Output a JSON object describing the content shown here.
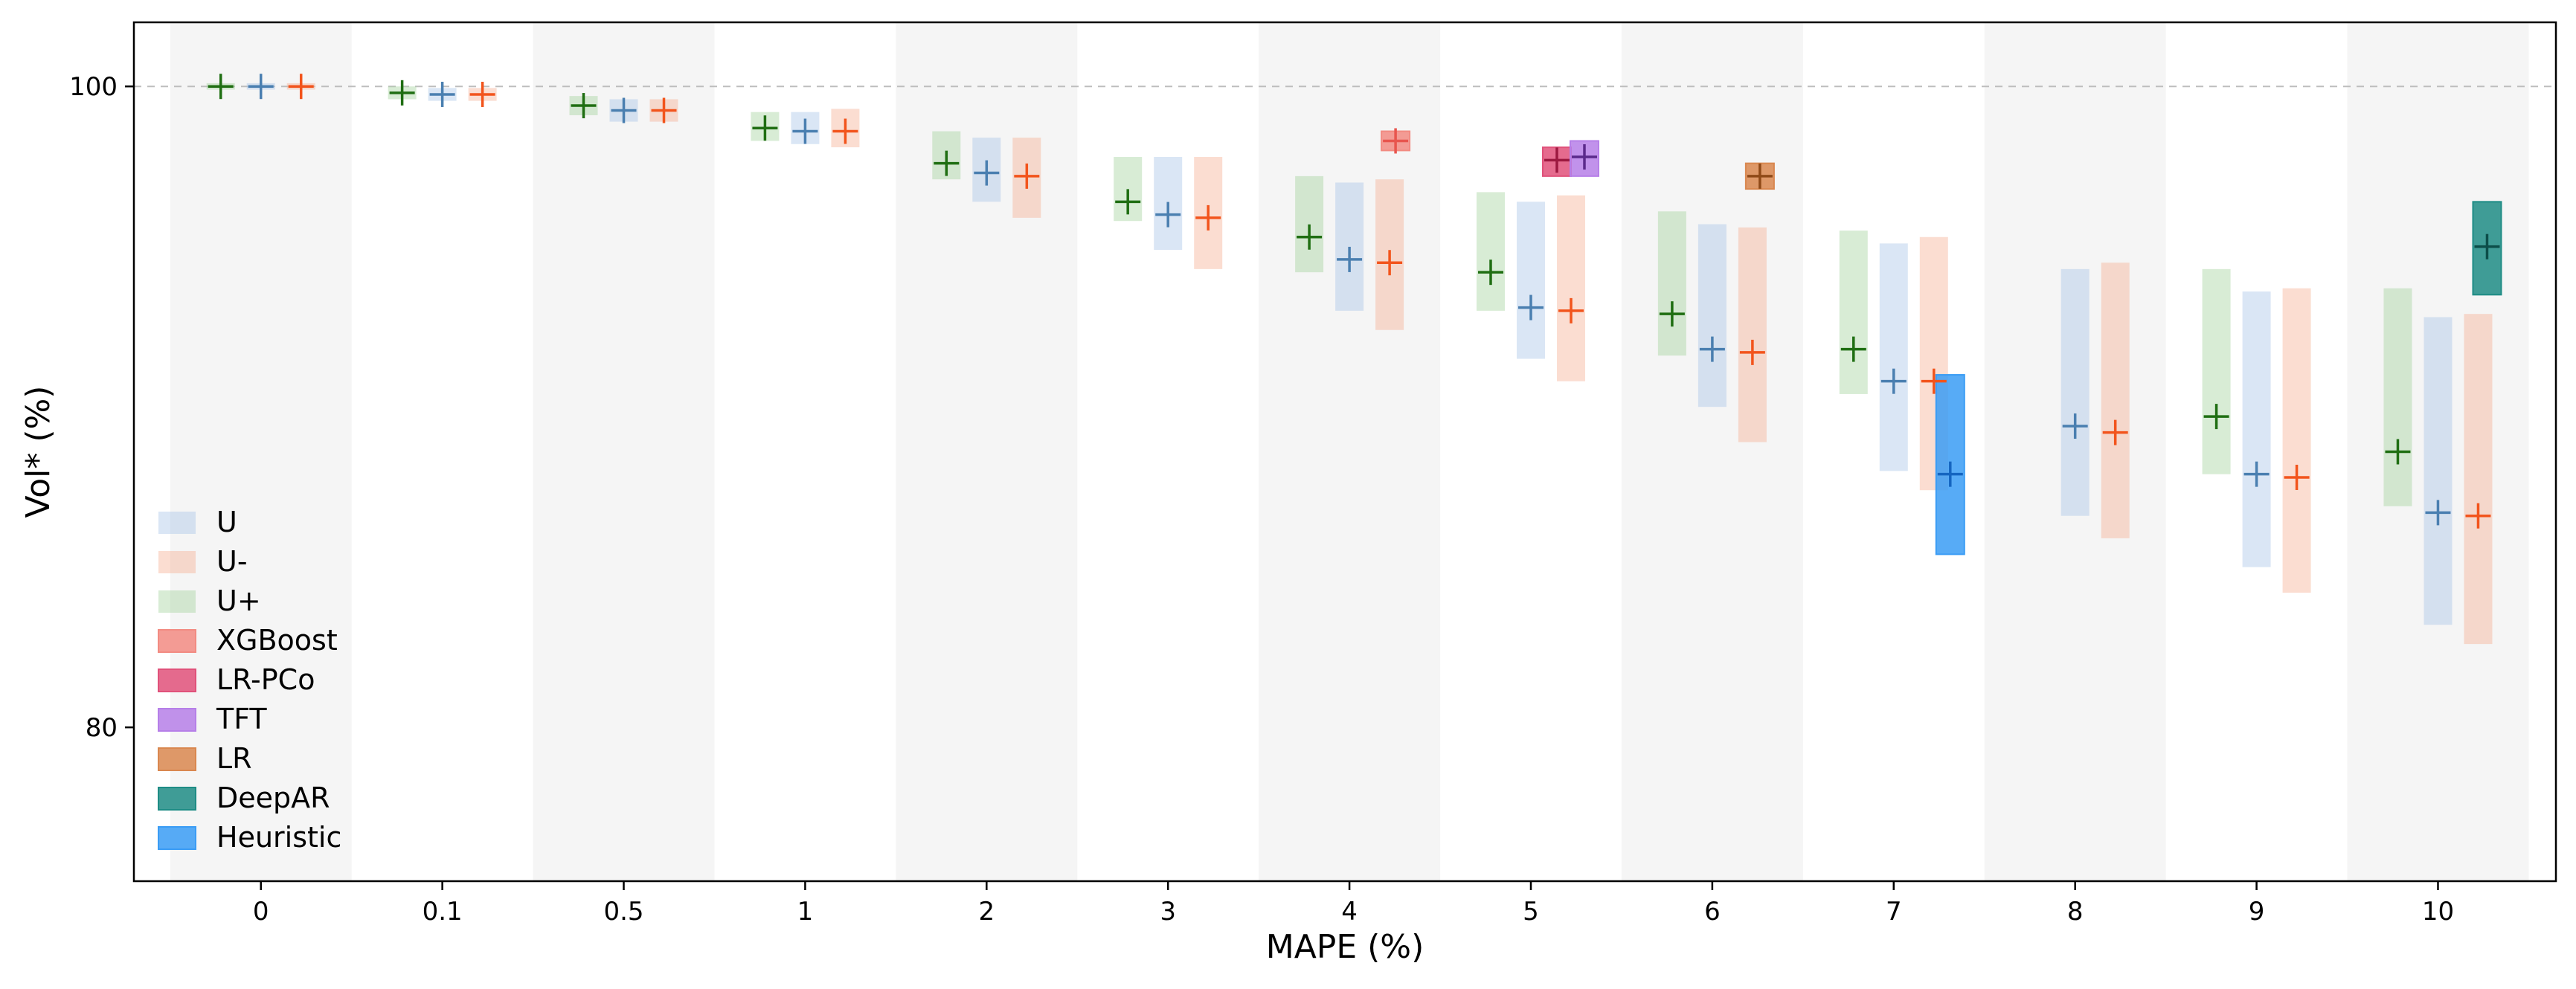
{
  "chart_data": {
    "type": "box",
    "xlabel": "MAPE (%)",
    "ylabel": "Vol* (%)",
    "categories": [
      "0",
      "0.1",
      "0.5",
      "1",
      "2",
      "3",
      "4",
      "5",
      "6",
      "7",
      "8",
      "9",
      "10"
    ],
    "y_ticks": [
      80,
      100
    ],
    "ylim": [
      75.2,
      102
    ],
    "reference_line": 100,
    "grid": false,
    "legend_position": "lower-left",
    "series": [
      {
        "name": "U",
        "color": "#aec7e8",
        "marker_color": "#4a7fb0",
        "kind": "uncertainty",
        "points": [
          {
            "x": "0",
            "mid": 100.0,
            "low": 99.9,
            "high": 100.1
          },
          {
            "x": "0.1",
            "mid": 99.75,
            "low": 99.55,
            "high": 99.95
          },
          {
            "x": "0.5",
            "mid": 99.25,
            "low": 98.9,
            "high": 99.6
          },
          {
            "x": "1",
            "mid": 98.6,
            "low": 98.2,
            "high": 99.2
          },
          {
            "x": "2",
            "mid": 97.3,
            "low": 96.4,
            "high": 98.4
          },
          {
            "x": "3",
            "mid": 96.0,
            "low": 94.9,
            "high": 97.8
          },
          {
            "x": "4",
            "mid": 94.6,
            "low": 93.0,
            "high": 97.0
          },
          {
            "x": "5",
            "mid": 93.1,
            "low": 91.5,
            "high": 96.4
          },
          {
            "x": "6",
            "mid": 91.8,
            "low": 90.0,
            "high": 95.7
          },
          {
            "x": "7",
            "mid": 90.8,
            "low": 88.0,
            "high": 95.1
          },
          {
            "x": "8",
            "mid": 89.4,
            "low": 86.6,
            "high": 94.3
          },
          {
            "x": "9",
            "mid": 87.9,
            "low": 85.0,
            "high": 93.6
          },
          {
            "x": "10",
            "mid": 86.7,
            "low": 83.2,
            "high": 92.8
          }
        ]
      },
      {
        "name": "U-",
        "color": "#f7b39a",
        "marker_color": "#f2541c",
        "kind": "uncertainty",
        "points": [
          {
            "x": "0",
            "mid": 100.0,
            "low": 99.9,
            "high": 100.1
          },
          {
            "x": "0.1",
            "mid": 99.75,
            "low": 99.55,
            "high": 99.95
          },
          {
            "x": "0.5",
            "mid": 99.25,
            "low": 98.9,
            "high": 99.6
          },
          {
            "x": "1",
            "mid": 98.6,
            "low": 98.1,
            "high": 99.3
          },
          {
            "x": "2",
            "mid": 97.2,
            "low": 95.9,
            "high": 98.4
          },
          {
            "x": "3",
            "mid": 95.9,
            "low": 94.3,
            "high": 97.8
          },
          {
            "x": "4",
            "mid": 94.5,
            "low": 92.4,
            "high": 97.1
          },
          {
            "x": "5",
            "mid": 93.0,
            "low": 90.8,
            "high": 96.6
          },
          {
            "x": "6",
            "mid": 91.7,
            "low": 88.9,
            "high": 95.6
          },
          {
            "x": "7",
            "mid": 90.8,
            "low": 87.4,
            "high": 95.3
          },
          {
            "x": "8",
            "mid": 89.2,
            "low": 85.9,
            "high": 94.5
          },
          {
            "x": "9",
            "mid": 87.8,
            "low": 84.2,
            "high": 93.7
          },
          {
            "x": "10",
            "mid": 86.6,
            "low": 82.6,
            "high": 92.9
          }
        ]
      },
      {
        "name": "U+",
        "color": "#a8d5a2",
        "marker_color": "#1f6e12",
        "kind": "uncertainty",
        "points": [
          {
            "x": "0",
            "mid": 100.0,
            "low": 99.9,
            "high": 100.1
          },
          {
            "x": "0.1",
            "mid": 99.8,
            "low": 99.6,
            "high": 100.0
          },
          {
            "x": "0.5",
            "mid": 99.4,
            "low": 99.1,
            "high": 99.7
          },
          {
            "x": "1",
            "mid": 98.7,
            "low": 98.3,
            "high": 99.2
          },
          {
            "x": "2",
            "mid": 97.6,
            "low": 97.1,
            "high": 98.6
          },
          {
            "x": "3",
            "mid": 96.4,
            "low": 95.8,
            "high": 97.8
          },
          {
            "x": "4",
            "mid": 95.3,
            "low": 94.2,
            "high": 97.2
          },
          {
            "x": "5",
            "mid": 94.2,
            "low": 93.0,
            "high": 96.7
          },
          {
            "x": "6",
            "mid": 92.9,
            "low": 91.6,
            "high": 96.1
          },
          {
            "x": "7",
            "mid": 91.8,
            "low": 90.4,
            "high": 95.5
          },
          {
            "x": "9",
            "mid": 89.7,
            "low": 87.9,
            "high": 94.3
          },
          {
            "x": "10",
            "mid": 88.6,
            "low": 86.9,
            "high": 93.7
          }
        ]
      },
      {
        "name": "XGBoost",
        "color": "#f28b82",
        "marker_color": "#e8554e",
        "kind": "method",
        "points": [
          {
            "x": "4",
            "mid": 98.3,
            "low": 98.0,
            "high": 98.6
          }
        ]
      },
      {
        "name": "LR-PCo",
        "color": "#e0517a",
        "marker_color": "#9c1940",
        "kind": "method",
        "points": [
          {
            "x": "5",
            "mid": 97.7,
            "low": 97.2,
            "high": 98.1
          }
        ]
      },
      {
        "name": "TFT",
        "color": "#b67fe8",
        "marker_color": "#5b2a8c",
        "kind": "method",
        "points": [
          {
            "x": "5",
            "mid": 97.8,
            "low": 97.2,
            "high": 98.3
          }
        ]
      },
      {
        "name": "LR",
        "color": "#d9874f",
        "marker_color": "#8f4a18",
        "kind": "method",
        "points": [
          {
            "x": "6",
            "mid": 97.2,
            "low": 96.8,
            "high": 97.6
          }
        ]
      },
      {
        "name": "DeepAR",
        "color": "#1e8c85",
        "marker_color": "#0c4d49",
        "kind": "method",
        "points": [
          {
            "x": "10",
            "mid": 95.0,
            "low": 93.5,
            "high": 96.4
          }
        ]
      },
      {
        "name": "Heuristic",
        "color": "#3a9cf5",
        "marker_color": "#1565c0",
        "kind": "method",
        "points": [
          {
            "x": "7",
            "mid": 87.9,
            "low": 85.4,
            "high": 91.0
          }
        ]
      }
    ]
  }
}
